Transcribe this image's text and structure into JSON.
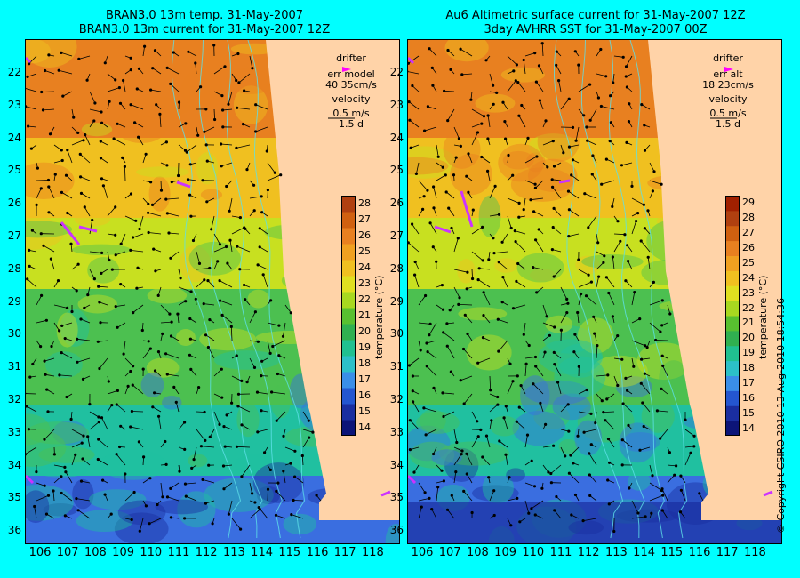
{
  "left": {
    "title_line1": "BRAN3.0 13m temp. 31-May-2007",
    "title_line2": "BRAN3.0 13m current for 31-May-2007 12Z",
    "legend": {
      "drifter": "drifter",
      "err_label": "err model",
      "err_values": "40 35cm/s",
      "velocity": "velocity",
      "vel_scale": "0.5 m/s",
      "vel_time": "1.5 d"
    }
  },
  "right": {
    "title_line1": "Au6 Altimetric surface current for 31-May-2007 12Z",
    "title_line2": "3day AVHRR SST for 31-May-2007 00Z",
    "legend": {
      "drifter": "drifter",
      "err_label": "err alt",
      "err_values": "18 23cm/s",
      "velocity": "velocity",
      "vel_scale": "0.5 m/s",
      "vel_time": "1.5 d"
    }
  },
  "map": {
    "lon_ticks": [
      "106",
      "107",
      "108",
      "109",
      "110",
      "111",
      "112",
      "113",
      "114",
      "115",
      "116",
      "117",
      "118"
    ],
    "lat_ticks": [
      "22",
      "23",
      "24",
      "25",
      "26",
      "27",
      "28",
      "29",
      "30",
      "31",
      "32",
      "33",
      "34",
      "35",
      "36"
    ],
    "land_color": "#ffd3a8",
    "ocean_palette": [
      "#1a2ea0",
      "#3a6ee0",
      "#20c0a0",
      "#4cc050",
      "#c8e020",
      "#f0c020",
      "#e88020"
    ]
  },
  "colorbar": {
    "title": "temperature (°C)",
    "ticks": [
      "14",
      "15",
      "16",
      "17",
      "18",
      "19",
      "20",
      "21",
      "22",
      "23",
      "24",
      "25",
      "26",
      "27",
      "28"
    ],
    "ticks_right": [
      "14",
      "15",
      "16",
      "17",
      "18",
      "19",
      "20",
      "21",
      "22",
      "23",
      "24",
      "25",
      "26",
      "27",
      "28",
      "29"
    ]
  },
  "copyright": "© Copyright CSIRO 2010   13-Aug-2010 18:54:36"
}
